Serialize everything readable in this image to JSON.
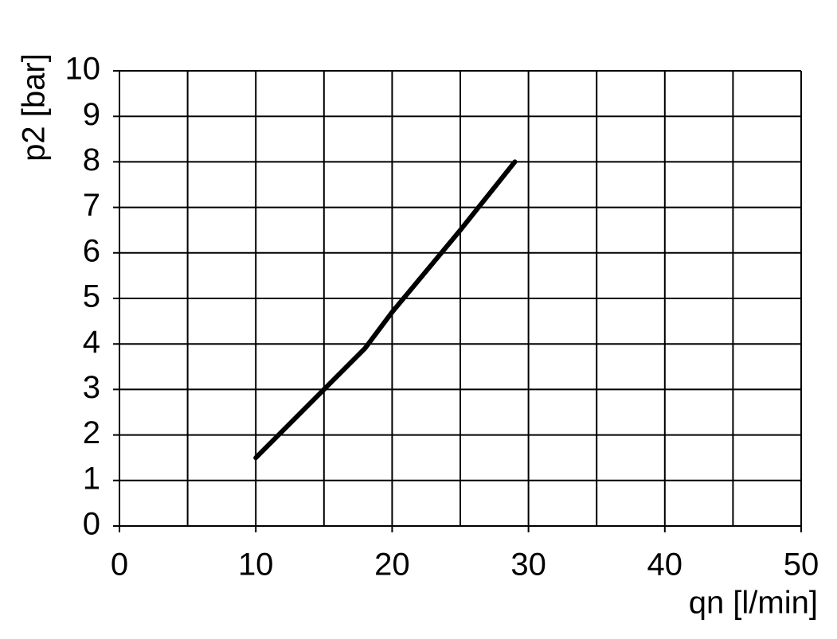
{
  "chart_data": {
    "type": "line",
    "x_label": "qn [l/min]",
    "y_label": "p2 [bar]",
    "x": [
      10,
      15,
      18,
      20,
      25,
      29
    ],
    "series": [
      {
        "color": "#000000",
        "values": [
          1.5,
          3,
          3.9,
          4.7,
          6.5,
          8
        ]
      }
    ],
    "xlim": [
      0,
      50
    ],
    "xticks": [
      0,
      10,
      20,
      30,
      40,
      50
    ],
    "xminor": [
      5,
      15,
      25,
      35,
      45
    ],
    "ylim": [
      0,
      10
    ],
    "yticks": [
      0,
      1,
      2,
      3,
      4,
      5,
      6,
      7,
      8,
      9,
      10
    ],
    "grid": true
  }
}
